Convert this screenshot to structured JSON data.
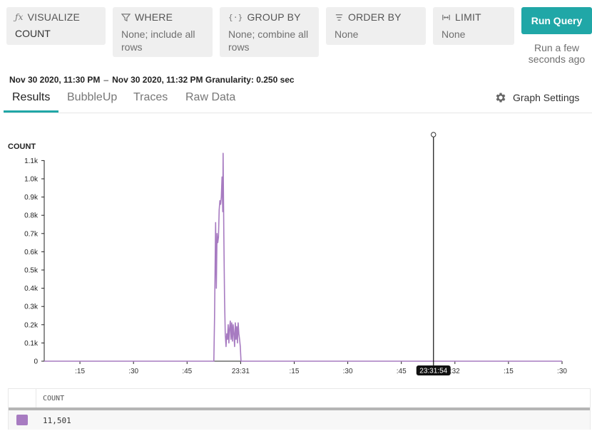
{
  "query": {
    "visualize": {
      "label": "VISUALIZE",
      "value": "COUNT",
      "icon": "function-icon"
    },
    "where": {
      "label": "WHERE",
      "value": "None; include all rows",
      "icon": "filter-icon"
    },
    "group_by": {
      "label": "GROUP BY",
      "value": "None; combine all rows",
      "icon": "braces-icon"
    },
    "order_by": {
      "label": "ORDER BY",
      "value": "None",
      "icon": "sort-icon"
    },
    "limit": {
      "label": "LIMIT",
      "value": "None",
      "icon": "limit-icon"
    },
    "run_label": "Run Query",
    "run_status": "Run a few seconds ago"
  },
  "range": {
    "start": "Nov 30 2020, 11:30 PM",
    "end": "Nov 30 2020, 11:32 PM",
    "granularity": "Granularity: 0.250 sec"
  },
  "tabs": [
    "Results",
    "BubbleUp",
    "Traces",
    "Raw Data"
  ],
  "active_tab": "Results",
  "graph_settings_label": "Graph Settings",
  "colors": {
    "accent": "#20a7a7",
    "series": "#a77bc1"
  },
  "chart_data": {
    "type": "line",
    "ylabel": "COUNT",
    "yticks": [
      "0",
      "0.1k",
      "0.2k",
      "0.3k",
      "0.4k",
      "0.5k",
      "0.6k",
      "0.7k",
      "0.8k",
      "0.9k",
      "1.0k",
      "1.1k"
    ],
    "ylim": [
      0,
      1100
    ],
    "xlim_sec": [
      5,
      150
    ],
    "xticks": [
      {
        "t": 15,
        "label": ":15"
      },
      {
        "t": 30,
        "label": ":30"
      },
      {
        "t": 45,
        "label": ":45"
      },
      {
        "t": 60,
        "label": "23:31"
      },
      {
        "t": 75,
        "label": ":15"
      },
      {
        "t": 90,
        "label": ":30"
      },
      {
        "t": 105,
        "label": ":45"
      },
      {
        "t": 120,
        "label": ":32"
      },
      {
        "t": 135,
        "label": ":15"
      },
      {
        "t": 150,
        "label": ":30"
      }
    ],
    "cursor": {
      "t": 114,
      "label": "23:31:54"
    },
    "series": [
      {
        "name": "COUNT",
        "points": [
          [
            5,
            0
          ],
          [
            52.5,
            0
          ],
          [
            52.7,
            240
          ],
          [
            53.0,
            760
          ],
          [
            53.2,
            400
          ],
          [
            53.4,
            700
          ],
          [
            53.6,
            650
          ],
          [
            53.8,
            680
          ],
          [
            54.0,
            830
          ],
          [
            54.2,
            880
          ],
          [
            54.4,
            860
          ],
          [
            54.6,
            900
          ],
          [
            54.8,
            1010
          ],
          [
            55.0,
            820
          ],
          [
            55.1,
            1140
          ],
          [
            55.3,
            700
          ],
          [
            55.5,
            350
          ],
          [
            55.7,
            150
          ],
          [
            55.9,
            80
          ],
          [
            56.1,
            150
          ],
          [
            56.3,
            120
          ],
          [
            56.5,
            200
          ],
          [
            56.7,
            100
          ],
          [
            56.9,
            180
          ],
          [
            57.1,
            220
          ],
          [
            57.3,
            120
          ],
          [
            57.5,
            210
          ],
          [
            57.7,
            110
          ],
          [
            57.9,
            200
          ],
          [
            58.1,
            150
          ],
          [
            58.3,
            80
          ],
          [
            58.5,
            210
          ],
          [
            58.7,
            120
          ],
          [
            58.9,
            190
          ],
          [
            59.1,
            100
          ],
          [
            59.3,
            210
          ],
          [
            59.5,
            150
          ],
          [
            59.7,
            120
          ],
          [
            59.9,
            80
          ],
          [
            60.1,
            0
          ],
          [
            150,
            0
          ]
        ]
      }
    ]
  },
  "table": {
    "column": "COUNT",
    "value": "11,501"
  }
}
